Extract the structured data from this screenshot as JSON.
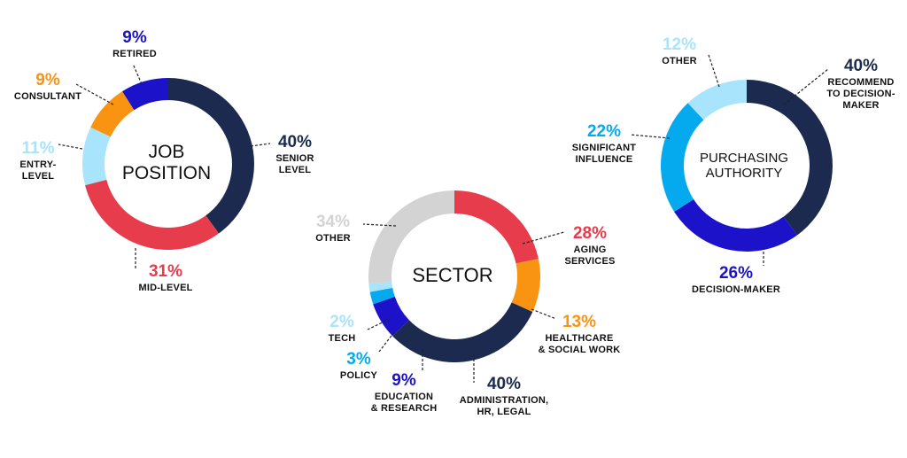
{
  "chart_data": [
    {
      "type": "pie",
      "center_label": "JOB\nPOSITION",
      "categories": [
        "SENIOR\nLEVEL",
        "MID-LEVEL",
        "ENTRY-\nLEVEL",
        "CONSULTANT",
        "RETIRED"
      ],
      "values": [
        40,
        31,
        11,
        9,
        9
      ],
      "value_labels": [
        "40%",
        "31%",
        "11%",
        "9%",
        "9%"
      ],
      "colors": [
        "#1b2a4e",
        "#e63c4b",
        "#a8e4fb",
        "#f99412",
        "#1c12c9"
      ]
    },
    {
      "type": "pie",
      "center_label": "SECTOR",
      "categories": [
        "AGING\nSERVICES",
        "HEALTHCARE\n& SOCIAL WORK",
        "ADMINISTRATION,\nHR, LEGAL",
        "EDUCATION\n& RESEARCH",
        "POLICY",
        "TECH",
        "OTHER"
      ],
      "values": [
        28,
        13,
        40,
        9,
        3,
        2,
        34
      ],
      "value_labels": [
        "28%",
        "13%",
        "40%",
        "9%",
        "3%",
        "2%",
        "34%"
      ],
      "colors": [
        "#e63c4b",
        "#f99412",
        "#1b2a4e",
        "#1c12c9",
        "#05aaee",
        "#a8e4fb",
        "#d3d3d3"
      ]
    },
    {
      "type": "pie",
      "center_label": "PURCHASING\nAUTHORITY",
      "categories": [
        "RECOMMEND\nTO DECISION-\nMAKER",
        "DECISION-MAKER",
        "SIGNIFICANT\nINFLUENCE",
        "OTHER"
      ],
      "values": [
        40,
        26,
        22,
        12
      ],
      "value_labels": [
        "40%",
        "26%",
        "22%",
        "12%"
      ],
      "colors": [
        "#1b2a4e",
        "#1c12c9",
        "#05aaee",
        "#a8e4fb"
      ]
    }
  ]
}
